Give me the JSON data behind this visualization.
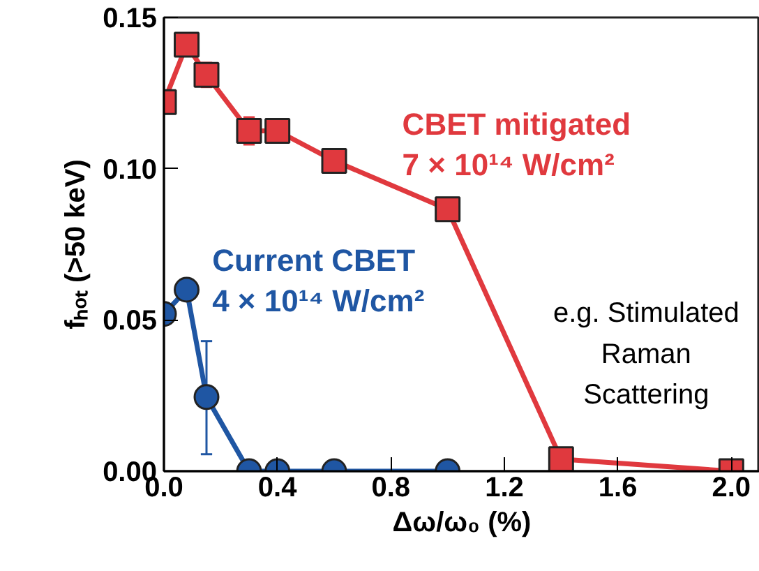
{
  "chart_data": {
    "type": "line",
    "xlabel": "Δω/ω₀ (%)",
    "ylabel": "fₕₒₜ (>50 keV)",
    "xlim": [
      0,
      2.1
    ],
    "ylim": [
      0,
      0.15
    ],
    "xticks": [
      {
        "value": 0,
        "label": "0.0"
      },
      {
        "value": 0.4,
        "label": "0.4"
      },
      {
        "value": 0.8,
        "label": "0.8"
      },
      {
        "value": 1.2,
        "label": "1.2"
      },
      {
        "value": 1.6,
        "label": "1.6"
      },
      {
        "value": 2.0,
        "label": "2.0"
      }
    ],
    "yticks": [
      {
        "value": 0,
        "label": "0.00"
      },
      {
        "value": 0.05,
        "label": "0.05"
      },
      {
        "value": 0.1,
        "label": "0.10"
      },
      {
        "value": 0.15,
        "label": "0.15"
      }
    ],
    "grid": false,
    "series": [
      {
        "name": "CBET mitigated\n7 × 10¹⁴ W/cm²",
        "color": "#e0393e",
        "marker": "square",
        "x": [
          0,
          0.08,
          0.15,
          0.3,
          0.4,
          0.6,
          1.0,
          1.4,
          2.0
        ],
        "values": [
          0.122,
          0.141,
          0.131,
          0.1125,
          0.1125,
          0.1026,
          0.0866,
          0.004,
          0.0
        ],
        "errors": [
          null,
          null,
          0.004,
          0.0045,
          null,
          null,
          null,
          null,
          null
        ]
      },
      {
        "name": "Current CBET\n4 × 10¹⁴ W/cm²",
        "color": "#1f56a3",
        "marker": "circle",
        "x": [
          0,
          0.08,
          0.15,
          0.3,
          0.4,
          0.6,
          1.0
        ],
        "values": [
          0.052,
          0.06,
          0.0245,
          0,
          0,
          0,
          0
        ],
        "errors": [
          null,
          null,
          [
            0.0056,
            0.043
          ],
          null,
          null,
          null,
          null
        ]
      }
    ],
    "annotations": [
      "e.g. Stimulated\nRaman\nScattering"
    ]
  }
}
